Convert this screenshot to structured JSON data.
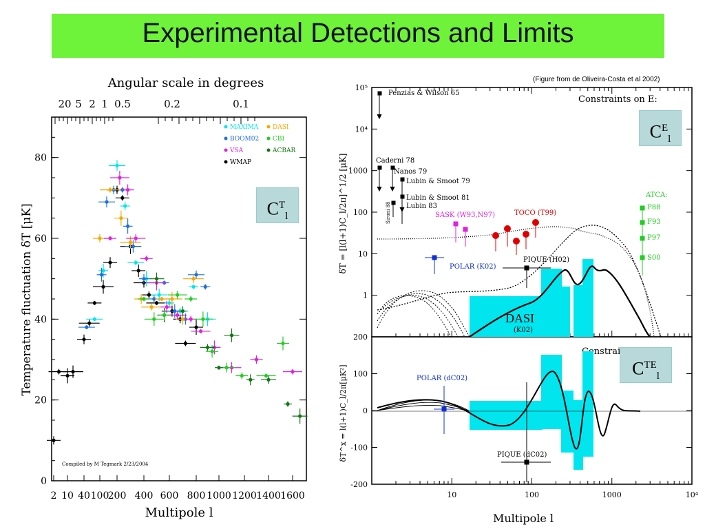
{
  "slide": {
    "title": "Experimental Detections and Limits",
    "credit": "(Figure from de Oliveira-Costa et al 2002)",
    "compiled": "Compiled by M Tegmark 2/23/2004",
    "box_ct": {
      "main": "C",
      "sup": "T",
      "sub": "l"
    },
    "box_ce": {
      "main": "C",
      "sup": "E",
      "sub": "l"
    },
    "box_cte": {
      "main": "C",
      "sup": "TE",
      "sub": "l"
    },
    "colors": {
      "title_bg": "#6ef23a",
      "label_box": "#b8d9d9",
      "cyan_band": "#00e5ee"
    }
  },
  "chart_data": [
    {
      "type": "scatter",
      "title": "Angular scale in degrees",
      "xlabel": "Multipole l",
      "ylabel": "Temperature fluctuation δT [μK]",
      "x_tick_labels": [
        "2",
        "10",
        "40",
        "100",
        "200",
        "400",
        "600",
        "800",
        "1000",
        "1200",
        "1400",
        "1600"
      ],
      "x_tick_values": [
        2,
        10,
        40,
        100,
        200,
        400,
        600,
        800,
        1000,
        1200,
        1400,
        1600
      ],
      "y_tick_labels": [
        "0",
        "20",
        "40",
        "60",
        "80"
      ],
      "ylim": [
        0,
        90
      ],
      "top_tick_labels": [
        "20",
        "5",
        "2",
        "1",
        "0.5",
        "0.2",
        "0.1"
      ],
      "legend": [
        {
          "name": "MAXIMA",
          "color": "#00e5ee"
        },
        {
          "name": "DASI",
          "color": "#f5a800"
        },
        {
          "name": "BOOM02",
          "color": "#1e6fe0"
        },
        {
          "name": "CBI",
          "color": "#22cc22"
        },
        {
          "name": "VSA",
          "color": "#e020e0"
        },
        {
          "name": "ACBAR",
          "color": "#117711"
        },
        {
          "name": "WMAP",
          "color": "#000000"
        }
      ],
      "series": [
        {
          "name": "WMAP",
          "points": [
            [
              2,
              10
            ],
            [
              5,
              27
            ],
            [
              10,
              26
            ],
            [
              20,
              27
            ],
            [
              40,
              35
            ],
            [
              60,
              39
            ],
            [
              80,
              44
            ],
            [
              120,
              48
            ],
            [
              160,
              54
            ],
            [
              200,
              72
            ],
            [
              240,
              70
            ],
            [
              300,
              58
            ],
            [
              360,
              52
            ],
            [
              400,
              49
            ],
            [
              440,
              46
            ],
            [
              500,
              44
            ],
            [
              560,
              41
            ],
            [
              620,
              42
            ],
            [
              680,
              40
            ],
            [
              720,
              34
            ],
            [
              800,
              38
            ]
          ]
        },
        {
          "name": "MAXIMA",
          "points": [
            [
              80,
              40
            ],
            [
              120,
              52
            ],
            [
              200,
              78
            ],
            [
              260,
              68
            ],
            [
              340,
              54
            ],
            [
              420,
              50
            ],
            [
              520,
              46
            ],
            [
              600,
              44
            ],
            [
              680,
              42
            ],
            [
              780,
              48
            ],
            [
              900,
              40
            ]
          ]
        },
        {
          "name": "BOOM02",
          "points": [
            [
              50,
              38
            ],
            [
              110,
              51
            ],
            [
              140,
              69
            ],
            [
              180,
              72
            ],
            [
              240,
              72
            ],
            [
              280,
              63
            ],
            [
              320,
              58
            ],
            [
              400,
              50
            ],
            [
              480,
              45
            ],
            [
              560,
              49
            ],
            [
              640,
              42
            ],
            [
              720,
              40
            ],
            [
              800,
              51
            ],
            [
              880,
              48
            ]
          ]
        },
        {
          "name": "DASI",
          "points": [
            [
              100,
              60
            ],
            [
              160,
              72
            ],
            [
              230,
              65
            ],
            [
              300,
              59
            ],
            [
              380,
              45
            ],
            [
              460,
              43
            ],
            [
              540,
              45
            ],
            [
              620,
              45
            ],
            [
              700,
              40
            ],
            [
              780,
              50
            ]
          ]
        },
        {
          "name": "VSA",
          "points": [
            [
              160,
              60
            ],
            [
              220,
              75
            ],
            [
              280,
              72
            ],
            [
              340,
              60
            ],
            [
              420,
              55
            ],
            [
              500,
              49
            ],
            [
              580,
              43
            ],
            [
              660,
              41
            ],
            [
              760,
              40
            ],
            [
              840,
              37
            ],
            [
              960,
              33
            ],
            [
              1100,
              28
            ],
            [
              1300,
              30
            ],
            [
              1600,
              27
            ]
          ]
        },
        {
          "name": "CBI",
          "points": [
            [
              400,
              45
            ],
            [
              480,
              40
            ],
            [
              560,
              41
            ],
            [
              660,
              46
            ],
            [
              760,
              45
            ],
            [
              860,
              40
            ],
            [
              940,
              32
            ],
            [
              1060,
              28
            ],
            [
              1180,
              26
            ],
            [
              1380,
              26
            ],
            [
              1520,
              34
            ]
          ]
        },
        {
          "name": "ACBAR",
          "points": [
            [
              500,
              50
            ],
            [
              700,
              42
            ],
            [
              900,
              33
            ],
            [
              1000,
              28
            ],
            [
              1100,
              36
            ],
            [
              1250,
              25
            ],
            [
              1400,
              25
            ],
            [
              1560,
              19
            ],
            [
              1680,
              16
            ]
          ]
        }
      ]
    },
    {
      "type": "line",
      "title": "Constraints on E:",
      "ylabel": "δT = [l(l+1)C_l/2π]^1/2 [μK]",
      "x_scale": "log",
      "xlim": [
        1,
        10000
      ],
      "y_scale": "log",
      "ylim": [
        0.1,
        100000
      ],
      "y_tick_labels": [
        "1",
        "10",
        "100",
        "1000",
        "10⁴",
        "10⁵"
      ],
      "annotations": [
        "Penzias & Wilson 65",
        "Caderni 78",
        "Nanos 79",
        "Lubin & Smoot 79",
        "Lubin & Smoot 81",
        "Lubin 83",
        "Sironi 88",
        "SASK (W93,N97)",
        "TOCO (T99)",
        "ATCA:",
        "P88",
        "F93",
        "P97",
        "S00",
        "POLAR (K02)",
        "PIQUE (H02)",
        "DASI",
        "(K02)"
      ]
    },
    {
      "type": "line",
      "title": "Constraints on X:",
      "ylabel": "δT^x = l(l+1)C_l/2π[μK²]",
      "xlabel": "Multipole l",
      "x_scale": "log",
      "xlim": [
        1,
        10000
      ],
      "x_tick_labels": [
        "10",
        "100",
        "1000",
        "10⁴"
      ],
      "ylim": [
        -200,
        200
      ],
      "y_tick_labels": [
        "200",
        "100",
        "0",
        "-100",
        "-200"
      ],
      "annotations": [
        "POLAR (dC02)",
        "PIQUE (dC02)"
      ]
    }
  ]
}
